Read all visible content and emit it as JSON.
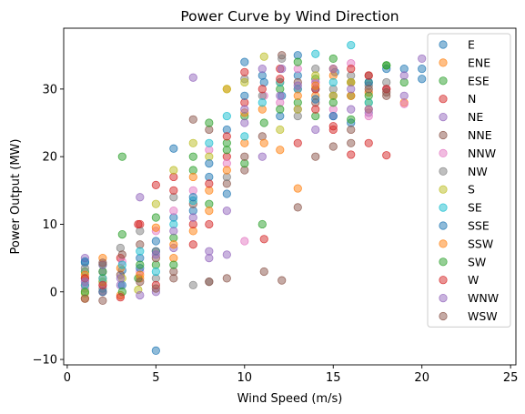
{
  "chart_data": {
    "type": "scatter",
    "title": "Power Curve by Wind Direction",
    "xlabel": "Wind Speed (m/s)",
    "ylabel": "Power Output (MW)",
    "xlim": [
      -0.2,
      25.3
    ],
    "ylim": [
      -10.8,
      39.0
    ],
    "xticks": [
      0,
      5,
      10,
      15,
      20,
      25
    ],
    "yticks": [
      -10,
      0,
      10,
      20,
      30
    ],
    "grid": false,
    "legend_position": "upper-right",
    "marker_alpha": 0.5,
    "series": [
      {
        "name": "E",
        "color": "#1f77b4",
        "points": [
          [
            1.0,
            4.3
          ],
          [
            2.0,
            1.5
          ],
          [
            3.1,
            3.2
          ],
          [
            4.1,
            5.0
          ],
          [
            5.0,
            -8.7
          ],
          [
            5.0,
            7.5
          ],
          [
            6.0,
            11.0
          ],
          [
            7.1,
            12.0
          ],
          [
            8.0,
            17.0
          ],
          [
            9.0,
            24.0
          ],
          [
            10.0,
            34.0
          ],
          [
            11.1,
            31.0
          ],
          [
            12.1,
            29.0
          ],
          [
            13.0,
            32.0
          ],
          [
            14.0,
            30.0
          ],
          [
            15.1,
            32.5
          ],
          [
            16.0,
            31.0
          ],
          [
            18.0,
            33.0
          ],
          [
            19.0,
            33.0
          ],
          [
            20.0,
            31.5
          ]
        ]
      },
      {
        "name": "ENE",
        "color": "#ff7f0e",
        "points": [
          [
            1.0,
            -1.0
          ],
          [
            2.0,
            2.0
          ],
          [
            3.0,
            3.5
          ],
          [
            4.1,
            2.0
          ],
          [
            5.0,
            6.0
          ],
          [
            6.0,
            5.0
          ],
          [
            7.1,
            9.0
          ],
          [
            8.0,
            15.0
          ],
          [
            9.0,
            30.0
          ],
          [
            10.0,
            22.0
          ],
          [
            11.0,
            27.0
          ],
          [
            12.0,
            31.0
          ],
          [
            13.0,
            15.3
          ],
          [
            14.0,
            29.0
          ],
          [
            15.0,
            32.0
          ],
          [
            16.0,
            31.0
          ],
          [
            17.0,
            29.5
          ],
          [
            18.0,
            30.0
          ],
          [
            19.0,
            28.0
          ]
        ]
      },
      {
        "name": "ESE",
        "color": "#2ca02c",
        "points": [
          [
            1.0,
            3.0
          ],
          [
            2.0,
            4.0
          ],
          [
            3.1,
            20.0
          ],
          [
            3.1,
            8.5
          ],
          [
            4.0,
            2.0
          ],
          [
            5.0,
            4.0
          ],
          [
            6.0,
            8.0
          ],
          [
            7.1,
            18.0
          ],
          [
            8.0,
            13.0
          ],
          [
            9.0,
            22.0
          ],
          [
            10.0,
            26.0
          ],
          [
            11.0,
            10.0
          ],
          [
            12.0,
            30.0
          ],
          [
            13.0,
            28.0
          ],
          [
            14.0,
            31.5
          ],
          [
            15.0,
            34.5
          ],
          [
            16.0,
            29.0
          ],
          [
            17.0,
            31.0
          ],
          [
            18.0,
            33.5
          ],
          [
            19.0,
            31.0
          ]
        ]
      },
      {
        "name": "N",
        "color": "#d62728",
        "points": [
          [
            1.0,
            1.0
          ],
          [
            2.0,
            0.0
          ],
          [
            3.0,
            5.0
          ],
          [
            4.1,
            10.0
          ],
          [
            5.0,
            15.8
          ],
          [
            6.0,
            17.0
          ],
          [
            7.1,
            10.0
          ],
          [
            8.0,
            16.0
          ],
          [
            9.0,
            20.0
          ],
          [
            10.0,
            28.0
          ],
          [
            11.1,
            7.8
          ],
          [
            12.0,
            33.0
          ],
          [
            13.0,
            30.0
          ],
          [
            14.0,
            30.0
          ],
          [
            15.0,
            24.0
          ],
          [
            16.0,
            20.3
          ],
          [
            17.0,
            22.0
          ],
          [
            18.0,
            20.2
          ]
        ]
      },
      {
        "name": "NE",
        "color": "#9467bd",
        "points": [
          [
            1.0,
            5.0
          ],
          [
            2.0,
            3.0
          ],
          [
            3.0,
            1.0
          ],
          [
            4.1,
            14.0
          ],
          [
            5.0,
            0.0
          ],
          [
            6.0,
            6.5
          ],
          [
            7.1,
            31.7
          ],
          [
            8.0,
            5.0
          ],
          [
            9.0,
            12.0
          ],
          [
            10.0,
            25.0
          ],
          [
            11.0,
            20.0
          ],
          [
            12.1,
            33.0
          ],
          [
            13.0,
            27.0
          ],
          [
            14.0,
            31.0
          ],
          [
            15.0,
            26.0
          ],
          [
            16.0,
            27.0
          ],
          [
            17.0,
            26.5
          ],
          [
            18.0,
            30.0
          ],
          [
            19.0,
            29.0
          ],
          [
            20.0,
            34.5
          ]
        ]
      },
      {
        "name": "NNE",
        "color": "#8c564b",
        "points": [
          [
            1.0,
            2.0
          ],
          [
            2.0,
            -1.3
          ],
          [
            3.0,
            2.5
          ],
          [
            4.1,
            7.0
          ],
          [
            5.0,
            5.0
          ],
          [
            6.0,
            3.0
          ],
          [
            7.1,
            13.0
          ],
          [
            8.0,
            24.0
          ],
          [
            9.0,
            16.0
          ],
          [
            10.0,
            18.0
          ],
          [
            11.0,
            23.0
          ],
          [
            12.1,
            35.0
          ],
          [
            13.0,
            31.0
          ],
          [
            14.0,
            28.0
          ],
          [
            15.0,
            29.0
          ],
          [
            16.0,
            22.0
          ],
          [
            17.0,
            32.0
          ],
          [
            18.0,
            29.0
          ]
        ]
      },
      {
        "name": "NNW",
        "color": "#e377c2",
        "points": [
          [
            1.0,
            0.5
          ],
          [
            2.0,
            1.0
          ],
          [
            3.1,
            4.5
          ],
          [
            4.1,
            3.0
          ],
          [
            5.0,
            9.0
          ],
          [
            6.0,
            12.0
          ],
          [
            7.1,
            15.0
          ],
          [
            8.0,
            21.0
          ],
          [
            9.0,
            19.0
          ],
          [
            10.0,
            7.5
          ],
          [
            11.1,
            29.0
          ],
          [
            12.0,
            28.0
          ],
          [
            13.0,
            33.0
          ],
          [
            14.0,
            31.0
          ],
          [
            15.0,
            27.0
          ],
          [
            16.0,
            33.8
          ],
          [
            17.0,
            26.0
          ],
          [
            19.0,
            27.8
          ]
        ]
      },
      {
        "name": "NW",
        "color": "#7f7f7f",
        "points": [
          [
            1.0,
            3.5
          ],
          [
            2.0,
            0.5
          ],
          [
            3.0,
            6.5
          ],
          [
            4.1,
            9.0
          ],
          [
            5.0,
            2.0
          ],
          [
            6.0,
            14.0
          ],
          [
            7.1,
            1.0
          ],
          [
            8.0,
            1.5
          ],
          [
            9.0,
            17.0
          ],
          [
            10.0,
            31.5
          ],
          [
            11.0,
            29.0
          ],
          [
            12.1,
            34.5
          ],
          [
            13.0,
            26.0
          ],
          [
            14.0,
            33.0
          ],
          [
            15.0,
            30.0
          ],
          [
            16.0,
            32.0
          ],
          [
            17.0,
            30.5
          ],
          [
            18.0,
            31.0
          ]
        ]
      },
      {
        "name": "S",
        "color": "#bcbd22",
        "points": [
          [
            1.0,
            -0.2
          ],
          [
            2.0,
            1.5
          ],
          [
            3.1,
            2.0
          ],
          [
            4.0,
            0.3
          ],
          [
            5.0,
            13.0
          ],
          [
            6.0,
            18.0
          ],
          [
            7.1,
            22.0
          ],
          [
            8.0,
            20.0
          ],
          [
            9.0,
            30.0
          ],
          [
            10.0,
            31.0
          ],
          [
            11.1,
            34.8
          ],
          [
            12.0,
            24.0
          ],
          [
            13.0,
            27.0
          ],
          [
            14.0,
            32.0
          ],
          [
            15.0,
            29.0
          ],
          [
            16.0,
            31.0
          ],
          [
            17.0,
            28.0
          ]
        ]
      },
      {
        "name": "SE",
        "color": "#17becf",
        "points": [
          [
            1.0,
            1.0
          ],
          [
            2.0,
            2.0
          ],
          [
            3.1,
            4.0
          ],
          [
            4.1,
            6.0
          ],
          [
            5.0,
            3.0
          ],
          [
            6.0,
            10.0
          ],
          [
            7.1,
            13.5
          ],
          [
            8.0,
            22.0
          ],
          [
            9.0,
            26.0
          ],
          [
            10.0,
            23.0
          ],
          [
            11.0,
            28.0
          ],
          [
            12.0,
            31.0
          ],
          [
            13.0,
            30.0
          ],
          [
            14.0,
            35.2
          ],
          [
            15.0,
            31.0
          ],
          [
            16.0,
            36.5
          ],
          [
            17.0,
            28.0
          ]
        ]
      },
      {
        "name": "SSE",
        "color": "#1f77b4",
        "points": [
          [
            1.0,
            4.5
          ],
          [
            2.0,
            0.0
          ],
          [
            3.1,
            1.0
          ],
          [
            4.1,
            3.5
          ],
          [
            5.0,
            6.0
          ],
          [
            6.0,
            21.2
          ],
          [
            7.1,
            14.0
          ],
          [
            8.0,
            19.0
          ],
          [
            9.0,
            14.5
          ],
          [
            10.0,
            29.0
          ],
          [
            11.0,
            32.0
          ],
          [
            12.0,
            26.0
          ],
          [
            13.0,
            35.0
          ],
          [
            14.0,
            28.5
          ],
          [
            15.0,
            26.0
          ],
          [
            16.0,
            25.0
          ],
          [
            17.0,
            31.0
          ],
          [
            20.0,
            33.0
          ]
        ]
      },
      {
        "name": "SSW",
        "color": "#ff7f0e",
        "points": [
          [
            1.0,
            2.5
          ],
          [
            2.0,
            5.0
          ],
          [
            3.0,
            -0.5
          ],
          [
            4.1,
            2.5
          ],
          [
            5.0,
            9.5
          ],
          [
            6.0,
            7.0
          ],
          [
            7.1,
            17.0
          ],
          [
            8.0,
            12.0
          ],
          [
            9.0,
            18.0
          ],
          [
            10.0,
            26.5
          ],
          [
            11.1,
            22.0
          ],
          [
            12.0,
            21.0
          ],
          [
            13.0,
            29.0
          ],
          [
            14.0,
            30.5
          ],
          [
            15.0,
            33.0
          ],
          [
            16.0,
            29.0
          ],
          [
            17.0,
            27.0
          ]
        ]
      },
      {
        "name": "SW",
        "color": "#2ca02c",
        "points": [
          [
            1.0,
            0.0
          ],
          [
            2.0,
            3.0
          ],
          [
            3.1,
            0.0
          ],
          [
            4.1,
            4.0
          ],
          [
            5.0,
            11.0
          ],
          [
            6.0,
            4.0
          ],
          [
            7.1,
            20.0
          ],
          [
            8.0,
            25.0
          ],
          [
            9.0,
            21.0
          ],
          [
            10.0,
            19.0
          ],
          [
            11.1,
            25.0
          ],
          [
            12.0,
            27.0
          ],
          [
            13.0,
            34.0
          ],
          [
            14.0,
            26.0
          ],
          [
            15.0,
            28.0
          ],
          [
            16.0,
            25.5
          ],
          [
            17.0,
            29.0
          ],
          [
            18.0,
            33.5
          ]
        ]
      },
      {
        "name": "W",
        "color": "#d62728",
        "points": [
          [
            1.0,
            2.0
          ],
          [
            2.0,
            1.0
          ],
          [
            3.0,
            -0.8
          ],
          [
            4.0,
            10.0
          ],
          [
            5.0,
            1.0
          ],
          [
            6.0,
            15.0
          ],
          [
            7.1,
            7.0
          ],
          [
            8.0,
            10.0
          ],
          [
            9.0,
            23.0
          ],
          [
            10.0,
            32.5
          ],
          [
            11.0,
            30.0
          ],
          [
            12.0,
            31.5
          ],
          [
            13.0,
            22.0
          ],
          [
            14.0,
            27.0
          ],
          [
            15.0,
            24.5
          ],
          [
            16.0,
            33.0
          ],
          [
            17.0,
            32.0
          ],
          [
            18.0,
            30.0
          ]
        ]
      },
      {
        "name": "WNW",
        "color": "#9467bd",
        "points": [
          [
            1.0,
            1.5
          ],
          [
            2.0,
            4.0
          ],
          [
            3.0,
            2.0
          ],
          [
            4.1,
            -0.5
          ],
          [
            5.0,
            5.5
          ],
          [
            6.0,
            9.0
          ],
          [
            7.1,
            11.0
          ],
          [
            8.0,
            6.0
          ],
          [
            9.0,
            5.5
          ],
          [
            10.0,
            27.0
          ],
          [
            11.0,
            33.0
          ],
          [
            12.0,
            29.0
          ],
          [
            13.0,
            30.5
          ],
          [
            14.0,
            24.0
          ],
          [
            15.0,
            33.0
          ],
          [
            16.0,
            30.0
          ],
          [
            17.0,
            27.0
          ],
          [
            19.0,
            32.0
          ]
        ]
      },
      {
        "name": "WSW",
        "color": "#8c564b",
        "points": [
          [
            1.0,
            -1.0
          ],
          [
            2.0,
            4.3
          ],
          [
            3.1,
            5.5
          ],
          [
            4.1,
            1.5
          ],
          [
            5.0,
            0.5
          ],
          [
            6.0,
            2.0
          ],
          [
            7.1,
            25.5
          ],
          [
            8.0,
            1.5
          ],
          [
            9.0,
            2.0
          ],
          [
            10.0,
            20.0
          ],
          [
            11.1,
            3.0
          ],
          [
            12.1,
            1.7
          ],
          [
            13.0,
            12.5
          ],
          [
            14.0,
            20.0
          ],
          [
            15.0,
            21.5
          ],
          [
            16.0,
            24.0
          ],
          [
            17.0,
            30.0
          ],
          [
            18.0,
            29.5
          ]
        ]
      }
    ]
  }
}
